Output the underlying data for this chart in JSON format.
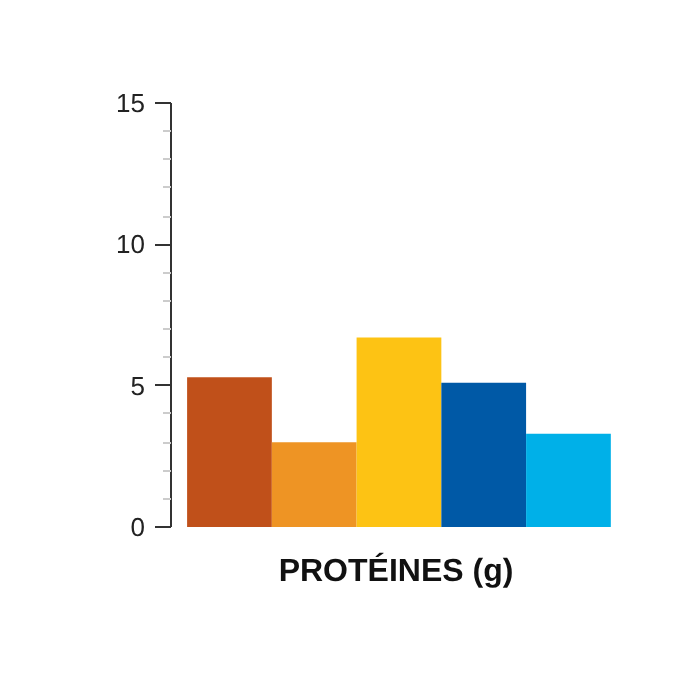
{
  "chart_data": {
    "type": "bar",
    "xlabel": "PROTÉINES (g)",
    "categories": [
      null,
      null,
      null,
      null,
      null
    ],
    "values": [
      5.3,
      3.0,
      6.7,
      5.1,
      3.3
    ],
    "colors": [
      "#c0501a",
      "#ee9424",
      "#fdc314",
      "#0059a6",
      "#00b0e8"
    ],
    "ylim": [
      0,
      15
    ],
    "yticks": [
      0,
      5,
      10,
      15
    ],
    "grid": false
  }
}
